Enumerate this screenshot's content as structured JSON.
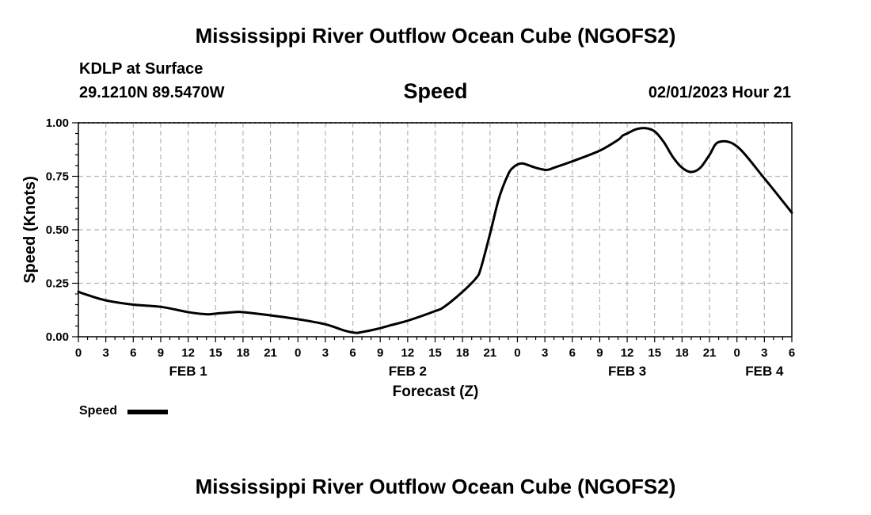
{
  "header": {
    "title": "Mississippi River Outflow Ocean Cube (NGOFS2)",
    "station": "KDLP at Surface",
    "coords": "29.1210N  89.5470W",
    "datetime": "02/01/2023 Hour 21"
  },
  "footer": {
    "title": "Mississippi River Outflow Ocean Cube (NGOFS2)"
  },
  "chart_data": {
    "type": "line",
    "title": "Speed",
    "xlabel": "Forecast (Z)",
    "ylabel": "Speed (Knots)",
    "xlim": [
      0,
      78
    ],
    "ylim": [
      0,
      1.0
    ],
    "grid": true,
    "y_ticks": [
      0,
      0.25,
      0.5,
      0.75,
      1.0
    ],
    "y_tick_labels": [
      "0.00",
      "0.25",
      "0.50",
      "0.75",
      "1.00"
    ],
    "x_tick_hours": [
      0,
      3,
      6,
      9,
      12,
      15,
      18,
      21,
      24,
      27,
      30,
      33,
      36,
      39,
      42,
      45,
      48,
      51,
      54,
      57,
      60,
      63,
      66,
      69,
      72,
      75,
      78
    ],
    "x_tick_labels": [
      "0",
      "3",
      "6",
      "9",
      "12",
      "15",
      "18",
      "21",
      "0",
      "3",
      "6",
      "9",
      "12",
      "15",
      "18",
      "21",
      "0",
      "3",
      "6",
      "9",
      "12",
      "15",
      "18",
      "21",
      "0",
      "3",
      "6"
    ],
    "date_labels": [
      {
        "hour": 12,
        "label": "FEB 1"
      },
      {
        "hour": 36,
        "label": "FEB 2"
      },
      {
        "hour": 60,
        "label": "FEB 3"
      },
      {
        "hour": 75,
        "label": "FEB 4"
      }
    ],
    "series": [
      {
        "name": "Speed",
        "color": "#000000",
        "x": [
          0,
          1,
          3,
          6,
          9,
          12,
          14,
          15,
          17,
          18,
          21,
          24,
          27,
          29,
          30,
          30.5,
          31,
          32,
          33,
          34,
          36,
          39,
          40,
          42,
          43.5,
          44,
          45,
          46,
          47,
          47.5,
          48,
          48.5,
          49,
          50,
          51,
          51.5,
          52,
          54,
          57,
          59,
          59.5,
          60,
          61,
          62,
          63,
          64,
          65,
          66,
          67,
          68,
          69,
          70,
          72,
          75,
          78
        ],
        "values": [
          0.21,
          0.195,
          0.17,
          0.15,
          0.14,
          0.115,
          0.105,
          0.108,
          0.115,
          0.115,
          0.1,
          0.082,
          0.058,
          0.03,
          0.02,
          0.018,
          0.022,
          0.03,
          0.04,
          0.052,
          0.075,
          0.12,
          0.14,
          0.21,
          0.275,
          0.32,
          0.48,
          0.65,
          0.76,
          0.79,
          0.805,
          0.81,
          0.805,
          0.79,
          0.78,
          0.782,
          0.79,
          0.82,
          0.87,
          0.92,
          0.94,
          0.95,
          0.97,
          0.975,
          0.96,
          0.91,
          0.84,
          0.79,
          0.77,
          0.79,
          0.85,
          0.91,
          0.89,
          0.74,
          0.58
        ]
      }
    ],
    "legend": {
      "position": "bottom-left",
      "label": "Speed"
    }
  }
}
